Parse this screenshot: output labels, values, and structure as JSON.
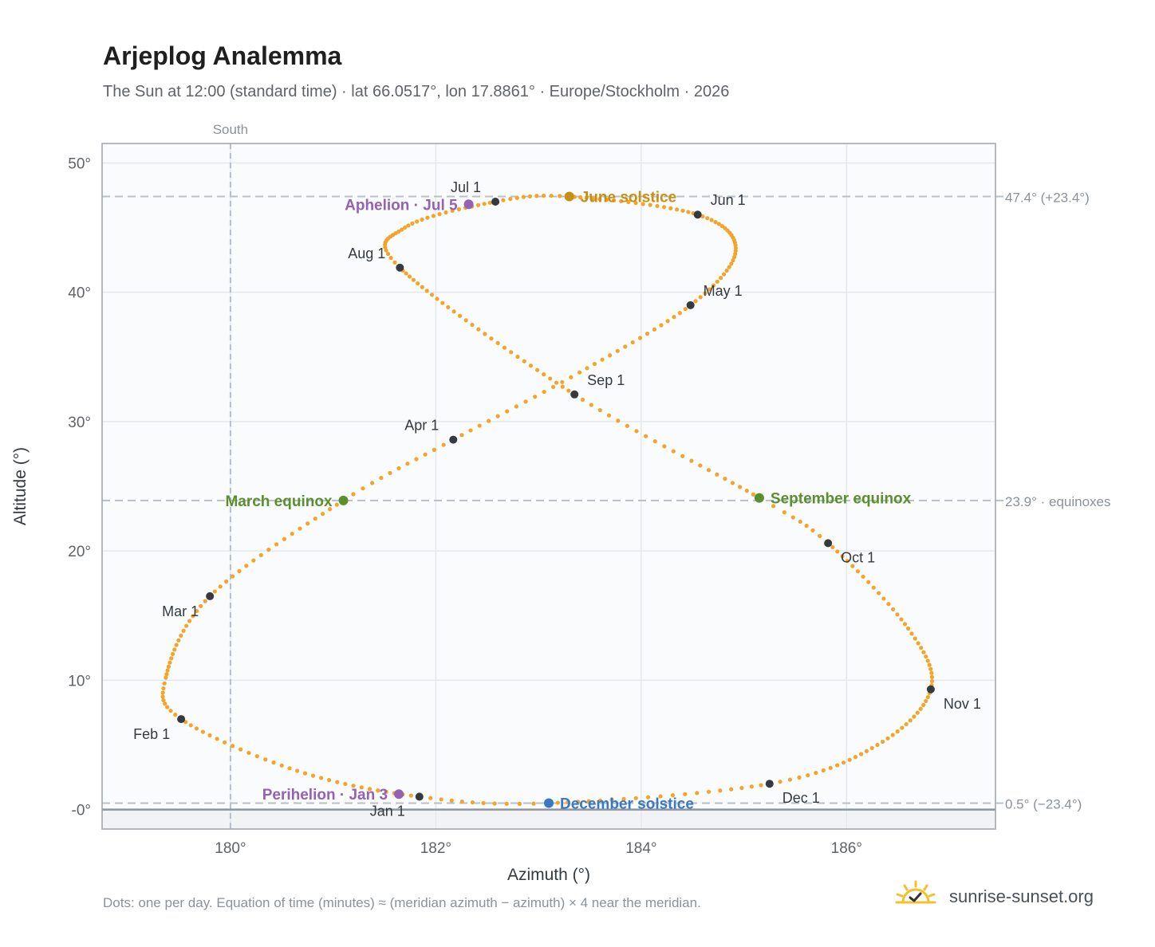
{
  "header": {
    "title": "Arjeplog Analemma",
    "subtitle": "The Sun at 12:00 (standard time) · lat 66.0517°, lon 17.8861° · Europe/Stockholm · 2026"
  },
  "footer": {
    "note": "Dots: one per day. Equation of time (minutes) ≈ (meridian azimuth − azimuth) × 4 near the meridian.",
    "brand": "sunrise-sunset.org",
    "brand_icon": "sun-check-icon"
  },
  "colors": {
    "path": "#f2a52a",
    "month_marker": "#343a40",
    "june_solstice": "#c98f12",
    "december_solstice": "#3a78c2",
    "equinox": "#5a8f2e",
    "aphelion_perihelion": "#9561b4",
    "reference_line": "#b7c0c9",
    "plot_bg": "#fafbfc",
    "below_horizon_bg": "#f1f3f5"
  },
  "chart_data": {
    "type": "scatter",
    "xlabel": "Azimuth (°)",
    "ylabel": "Altitude (°)",
    "xlim": [
      178.75,
      187.45
    ],
    "ylim": [
      -1.5,
      51.5
    ],
    "x_ticks": [
      {
        "value": 180,
        "label": "180°"
      },
      {
        "value": 182,
        "label": "182°"
      },
      {
        "value": 184,
        "label": "184°"
      },
      {
        "value": 186,
        "label": "186°"
      }
    ],
    "y_ticks": [
      {
        "value": 0,
        "label": "-0°"
      },
      {
        "value": 10,
        "label": "10°"
      },
      {
        "value": 20,
        "label": "20°"
      },
      {
        "value": 30,
        "label": "30°"
      },
      {
        "value": 40,
        "label": "40°"
      },
      {
        "value": 50,
        "label": "50°"
      }
    ],
    "grid": true,
    "south_line": {
      "x": 180,
      "label": "South"
    },
    "reference_lines": [
      {
        "y": 47.4,
        "label": "47.4° (+23.4°)"
      },
      {
        "y": 23.9,
        "label": "23.9° · equinoxes"
      },
      {
        "y": 0.5,
        "label": "0.5° (−23.4°)"
      }
    ],
    "month_markers": [
      {
        "label": "Jan 1",
        "x": 181.84,
        "y": 1.0,
        "label_pos": "below-left"
      },
      {
        "label": "Feb 1",
        "x": 179.52,
        "y": 7.0,
        "label_pos": "below-left"
      },
      {
        "label": "Mar 1",
        "x": 179.8,
        "y": 16.5,
        "label_pos": "below-left"
      },
      {
        "label": "Apr 1",
        "x": 182.17,
        "y": 28.6,
        "label_pos": "above-left"
      },
      {
        "label": "May 1",
        "x": 184.48,
        "y": 39.0,
        "label_pos": "above-right"
      },
      {
        "label": "Jun 1",
        "x": 184.55,
        "y": 46.0,
        "label_pos": "above-right"
      },
      {
        "label": "Jul 1",
        "x": 182.58,
        "y": 47.0,
        "label_pos": "above-left"
      },
      {
        "label": "Aug 1",
        "x": 181.65,
        "y": 41.9,
        "label_pos": "above-left"
      },
      {
        "label": "Sep 1",
        "x": 183.35,
        "y": 32.1,
        "label_pos": "above-right"
      },
      {
        "label": "Oct 1",
        "x": 185.82,
        "y": 20.6,
        "label_pos": "below-right"
      },
      {
        "label": "Nov 1",
        "x": 186.82,
        "y": 9.3,
        "label_pos": "below-right"
      },
      {
        "label": "Dec 1",
        "x": 185.25,
        "y": 2.0,
        "label_pos": "below-right"
      }
    ],
    "events": [
      {
        "label": "June solstice",
        "x": 183.3,
        "y": 47.4,
        "color": "#c98f12",
        "label_pos": "right"
      },
      {
        "label": "December solstice",
        "x": 183.1,
        "y": 0.5,
        "color": "#3a78c2",
        "label_pos": "right"
      },
      {
        "label": "March equinox",
        "x": 181.1,
        "y": 23.9,
        "color": "#5a8f2e",
        "label_pos": "left"
      },
      {
        "label": "September equinox",
        "x": 185.15,
        "y": 24.1,
        "color": "#5a8f2e",
        "label_pos": "right"
      },
      {
        "label": "Aphelion · Jul 5",
        "x": 182.32,
        "y": 46.8,
        "color": "#9561b4",
        "label_pos": "left"
      },
      {
        "label": "Perihelion · Jan 3",
        "x": 181.64,
        "y": 1.2,
        "color": "#9561b4",
        "label_pos": "left"
      }
    ],
    "path_anchors": [
      {
        "day": 1,
        "x": 181.84,
        "y": 1.0
      },
      {
        "day": 16,
        "x": 180.65,
        "y": 3.0
      },
      {
        "day": 32,
        "x": 179.52,
        "y": 7.0
      },
      {
        "day": 42,
        "x": 179.37,
        "y": 10.2
      },
      {
        "day": 60,
        "x": 179.8,
        "y": 16.5
      },
      {
        "day": 79,
        "x": 181.1,
        "y": 23.9
      },
      {
        "day": 91,
        "x": 182.17,
        "y": 28.6
      },
      {
        "day": 105,
        "x": 183.4,
        "y": 33.8
      },
      {
        "day": 121,
        "x": 184.48,
        "y": 39.0
      },
      {
        "day": 136,
        "x": 184.92,
        "y": 43.2
      },
      {
        "day": 152,
        "x": 184.55,
        "y": 46.0
      },
      {
        "day": 172,
        "x": 183.3,
        "y": 47.4
      },
      {
        "day": 182,
        "x": 182.58,
        "y": 47.0
      },
      {
        "day": 198,
        "x": 181.7,
        "y": 45.0
      },
      {
        "day": 213,
        "x": 181.65,
        "y": 41.9
      },
      {
        "day": 244,
        "x": 183.35,
        "y": 32.1
      },
      {
        "day": 266,
        "x": 185.15,
        "y": 24.1
      },
      {
        "day": 274,
        "x": 185.82,
        "y": 20.6
      },
      {
        "day": 291,
        "x": 186.6,
        "y": 14.0
      },
      {
        "day": 305,
        "x": 186.82,
        "y": 9.3
      },
      {
        "day": 320,
        "x": 186.3,
        "y": 5.0
      },
      {
        "day": 335,
        "x": 185.25,
        "y": 2.0
      },
      {
        "day": 355,
        "x": 183.1,
        "y": 0.5
      },
      {
        "day": 366,
        "x": 181.84,
        "y": 1.0
      }
    ]
  }
}
